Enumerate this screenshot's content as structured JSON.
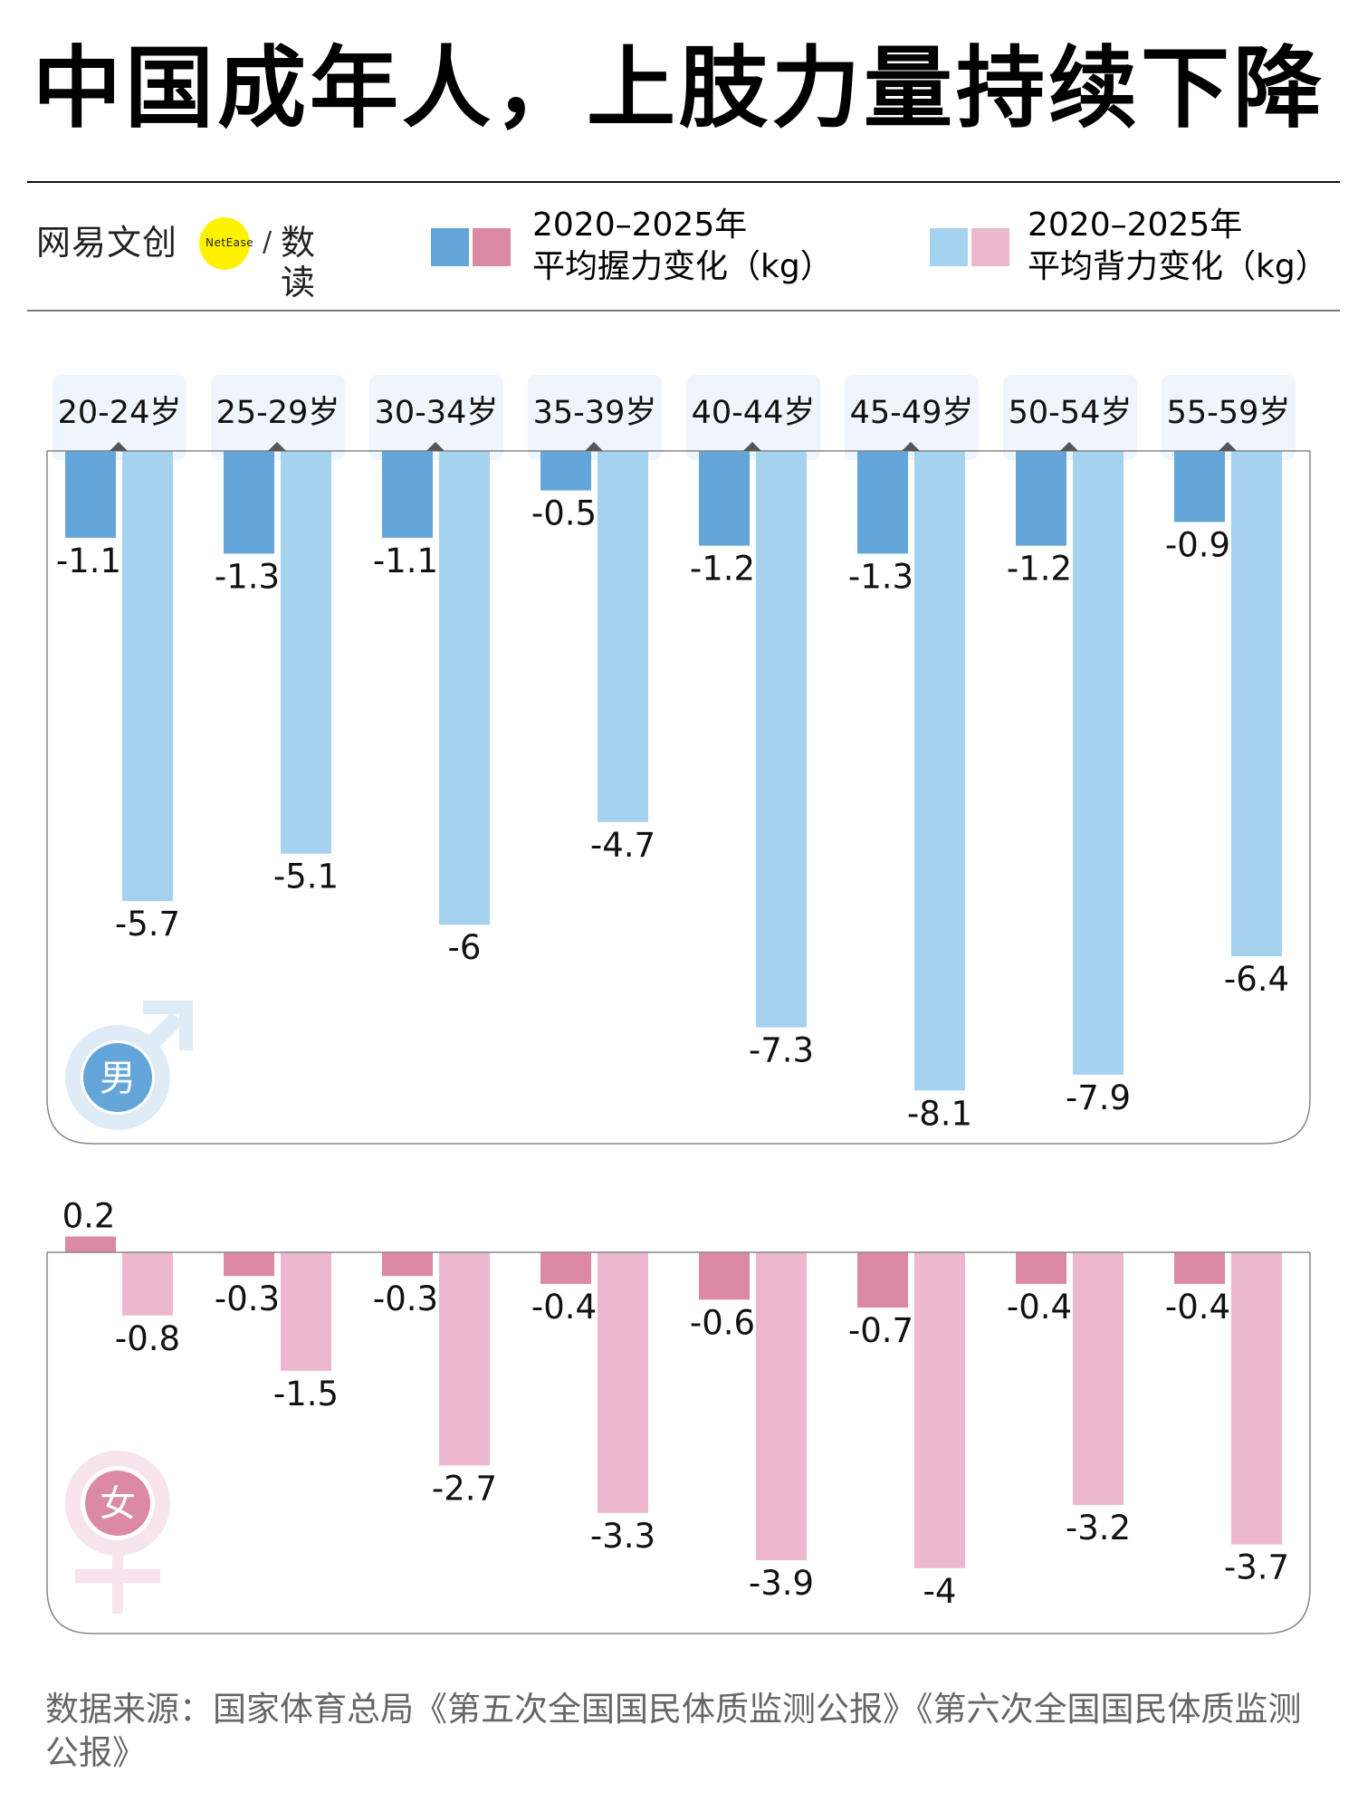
{
  "header": {
    "title": "中国成年人，上肢力量持续下降"
  },
  "logo": {
    "brand_cn": "网易文创",
    "brand_en": "NetEase",
    "separator": "/",
    "column": "数读"
  },
  "legend": [
    {
      "line1": "2020–2025年",
      "line2": "平均握力变化（kg）",
      "colors": [
        "#64a6da",
        "#db89a4"
      ]
    },
    {
      "line1": "2020–2025年",
      "line2": "平均背力变化（kg）",
      "colors": [
        "#a5d2ef",
        "#edb8cf"
      ]
    }
  ],
  "colors": {
    "male_grip": "#64a6da",
    "male_back": "#a5d2ef",
    "female_grip": "#db89a4",
    "female_back": "#edb8cf",
    "category_box": "#eef5fc",
    "male_symbol_ring": "#dfecf8",
    "female_symbol_ring": "#f7e4ec"
  },
  "chart_data": {
    "type": "bar",
    "title": "中国成年人，上肢力量持续下降",
    "xlabel": "",
    "ylabel": "",
    "unit": "kg",
    "categories": [
      "20-24岁",
      "25-29岁",
      "30-34岁",
      "35-39岁",
      "40-44岁",
      "45-49岁",
      "50-54岁",
      "55-59岁"
    ],
    "panels": [
      {
        "name": "男",
        "series": [
          {
            "name": "2020–2025年平均握力变化（kg）",
            "values": [
              -1.1,
              -1.3,
              -1.1,
              -0.5,
              -1.2,
              -1.3,
              -1.2,
              -0.9
            ],
            "labels": [
              "-1.1",
              "-1.3",
              "-1.1",
              "-0.5",
              "-1.2",
              "-1.3",
              "-1.2",
              "-0.9"
            ]
          },
          {
            "name": "2020–2025年平均背力变化（kg）",
            "values": [
              -5.7,
              -5.1,
              -6,
              -4.7,
              -7.3,
              -8.1,
              -7.9,
              -6.4
            ],
            "labels": [
              "-5.7",
              "-5.1",
              "-6",
              "-4.7",
              "-7.3",
              "-8.1",
              "-7.9",
              "-6.4"
            ]
          }
        ]
      },
      {
        "name": "女",
        "series": [
          {
            "name": "2020–2025年平均握力变化（kg）",
            "values": [
              0.2,
              -0.3,
              -0.3,
              -0.4,
              -0.6,
              -0.7,
              -0.4,
              -0.4
            ],
            "labels": [
              "0.2",
              "-0.3",
              "-0.3",
              "-0.4",
              "-0.6",
              "-0.7",
              "-0.4",
              "-0.4"
            ]
          },
          {
            "name": "2020–2025年平均背力变化（kg）",
            "values": [
              -0.8,
              -1.5,
              -2.7,
              -3.3,
              -3.9,
              -4,
              -3.2,
              -3.7
            ],
            "labels": [
              "-0.8",
              "-1.5",
              "-2.7",
              "-3.3",
              "-3.9",
              "-4",
              "-3.2",
              "-3.7"
            ]
          }
        ]
      }
    ],
    "grid": false,
    "legend_position": "top"
  },
  "source": {
    "text": "数据来源：国家体育总局《第五次全国国民体质监测公报》《第六次全国国民体质监测公报》"
  }
}
